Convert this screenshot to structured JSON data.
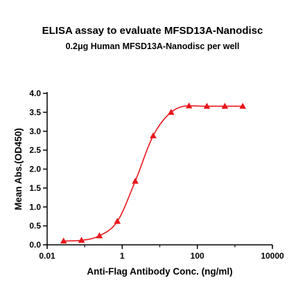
{
  "chart_data": {
    "type": "line",
    "title": "ELISA assay to evaluate MFSD13A-Nanodisc",
    "subtitle": "0.2μg Human MFSD13A-Nanodisc per well",
    "xlabel": "Anti-Flag Antibody Conc. (ng/ml)",
    "ylabel": "Mean Abs.(OD450)",
    "x_scale": "log",
    "xlim": [
      0.01,
      10000
    ],
    "ylim": [
      0,
      4.0
    ],
    "x_ticks": [
      "0.01",
      "1",
      "100",
      "10000"
    ],
    "y_ticks": [
      "0.0",
      "0.5",
      "1.0",
      "1.5",
      "2.0",
      "2.5",
      "3.0",
      "3.5",
      "4.0"
    ],
    "grid": false,
    "color": "#e8151b",
    "marker": "triangle",
    "series": [
      {
        "x": [
          0.0274,
          0.0823,
          0.247,
          0.741,
          2.22,
          6.67,
          20,
          60,
          180,
          540,
          1620
        ],
        "y": [
          0.1,
          0.12,
          0.24,
          0.62,
          1.68,
          2.88,
          3.5,
          3.67,
          3.66,
          3.66,
          3.66
        ]
      }
    ]
  }
}
